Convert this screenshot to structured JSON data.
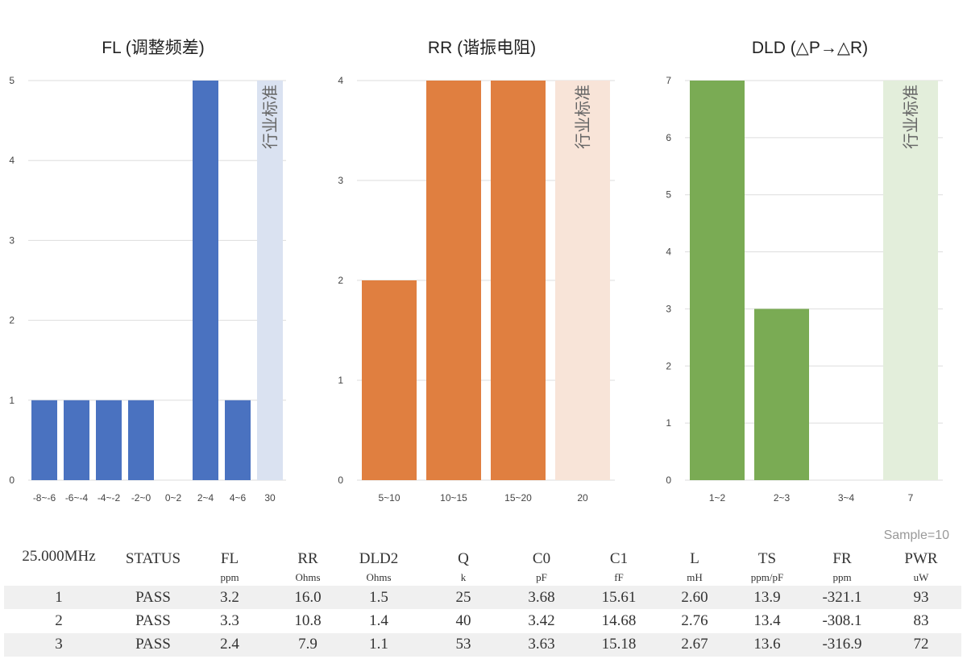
{
  "chart_data": [
    {
      "type": "bar",
      "title": "FL (调整频差)",
      "categories": [
        "-8~-6",
        "-6~-4",
        "-4~-2",
        "-2~0",
        "0~2",
        "2~4",
        "4~6",
        "30"
      ],
      "values": [
        1,
        1,
        1,
        1,
        0,
        5,
        1,
        null
      ],
      "ylim": [
        0,
        5
      ],
      "yticks": [
        0,
        1,
        2,
        3,
        4,
        5
      ],
      "band_label": "行业标准",
      "band_category": "30",
      "color": "#4a72c0",
      "band_color": "#dae2f1",
      "grid": true
    },
    {
      "type": "bar",
      "title": "RR (谐振电阻)",
      "categories": [
        "5~10",
        "10~15",
        "15~20",
        "20"
      ],
      "values": [
        2,
        4,
        4,
        null
      ],
      "ylim": [
        0,
        4
      ],
      "yticks": [
        0,
        1,
        2,
        3,
        4
      ],
      "band_label": "行业标准",
      "band_category": "20",
      "color": "#e07f40",
      "band_color": "#f8e4d8",
      "grid": true
    },
    {
      "type": "bar",
      "title": "DLD (△P→△R)",
      "categories": [
        "1~2",
        "2~3",
        "3~4",
        "7"
      ],
      "values": [
        7,
        3,
        0,
        null
      ],
      "ylim": [
        0,
        7
      ],
      "yticks": [
        0,
        1,
        2,
        3,
        4,
        5,
        6,
        7
      ],
      "band_label": "行业标准",
      "band_category": "7",
      "color": "#7aab54",
      "band_color": "#e3eedb",
      "grid": true
    }
  ],
  "table": {
    "sample": "Sample=10",
    "headers": [
      "25.000MHz",
      "STATUS",
      "FL",
      "RR",
      "DLD2",
      "Q",
      "C0",
      "C1",
      "L",
      "TS",
      "FR",
      "PWR"
    ],
    "units": [
      "",
      "",
      "ppm",
      "Ohms",
      "Ohms",
      "k",
      "pF",
      "fF",
      "mH",
      "ppm/pF",
      "ppm",
      "uW"
    ],
    "rows": [
      [
        "1",
        "PASS",
        "3.2",
        "16.0",
        "1.5",
        "25",
        "3.68",
        "15.61",
        "2.60",
        "13.9",
        "-321.1",
        "93"
      ],
      [
        "2",
        "PASS",
        "3.3",
        "10.8",
        "1.4",
        "40",
        "3.42",
        "14.68",
        "2.76",
        "13.4",
        "-308.1",
        "83"
      ],
      [
        "3",
        "PASS",
        "2.4",
        "7.9",
        "1.1",
        "53",
        "3.63",
        "15.18",
        "2.67",
        "13.6",
        "-316.9",
        "72"
      ]
    ]
  }
}
